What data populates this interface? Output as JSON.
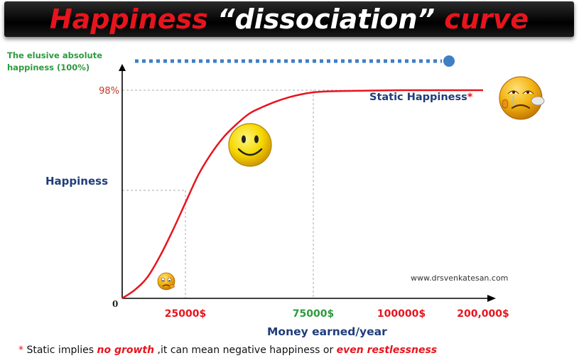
{
  "title": {
    "part1": "Happiness",
    "part2": "“dissociation”",
    "part3": "curve"
  },
  "chart_data": {
    "type": "line",
    "series": [
      {
        "x": [
          0,
          5000,
          10000,
          15000,
          20000,
          25000,
          30000,
          35000,
          40000,
          45000,
          50000,
          55000,
          60000,
          65000,
          70000,
          75000,
          80000,
          90000,
          100000,
          150000,
          200000
        ],
        "values": [
          0,
          4,
          10,
          20,
          32,
          45,
          58,
          68,
          76,
          82,
          87,
          90,
          92.5,
          94.5,
          96,
          97,
          97.5,
          97.8,
          98,
          98,
          98
        ]
      }
    ],
    "x_ticks": [
      "25000$",
      "75000$",
      "100000$",
      "200,000$"
    ],
    "x_tick_colors": [
      "#e8141d",
      "#2e9a3e",
      "#e8141d",
      "#e8141d"
    ],
    "xlabel": "Money earned/year",
    "ylabel": "Happiness",
    "y_ticks": [
      "0",
      "98%"
    ],
    "ylim": [
      0,
      100
    ],
    "reference_line_label": "The  elusive absolute happiness  (100%)",
    "reference_value": 100,
    "annotations": {
      "static_happiness": "Static Happiness",
      "asterisk": "*",
      "website": "www.drsvenkatesan.com"
    },
    "colors": {
      "curve": "#e8141d",
      "reference_line": "#3f7fc4",
      "axis_label": "#1f3d7a",
      "reference_label": "#2e9a3e"
    }
  },
  "footnote": {
    "star": "*",
    "part1": " Static implies ",
    "part2": "no growth",
    "part3": " ,it can mean  negative happiness or ",
    "part4": "even restlessness"
  },
  "icons": [
    "sad-face-icon",
    "smiley-face-icon",
    "crying-face-icon"
  ]
}
